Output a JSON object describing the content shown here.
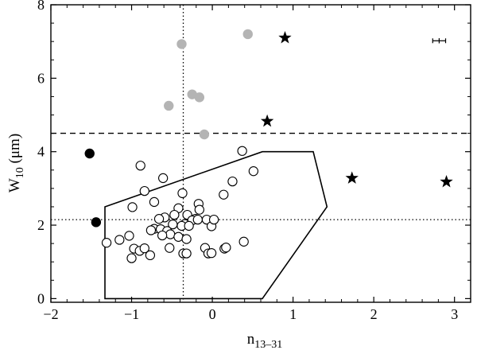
{
  "chart_data": {
    "type": "scatter",
    "xlabel": "n",
    "xlabel_sub": "13–31",
    "ylabel": "W",
    "ylabel_sub": "10",
    "ylabel_unit": " (μm)",
    "xlim": [
      -2,
      3.2
    ],
    "ylim": [
      -0.1,
      8
    ],
    "xticks": [
      -2,
      -1,
      0,
      1,
      2,
      3
    ],
    "xtick_labels": [
      "−2",
      "−1",
      "0",
      "1",
      "2",
      "3"
    ],
    "yticks": [
      0,
      2,
      4,
      6,
      8
    ],
    "ytick_labels": [
      "0",
      "2",
      "4",
      "6",
      "8"
    ],
    "reference_lines": {
      "dashed_horizontal_y": 4.5,
      "dotted_horizontal_y": 2.15,
      "dotted_vertical_x": -0.36
    },
    "region_polygon": [
      [
        -1.33,
        2.5
      ],
      [
        0.62,
        4.0
      ],
      [
        1.25,
        4.0
      ],
      [
        1.42,
        2.5
      ],
      [
        0.62,
        0
      ],
      [
        -1.33,
        0
      ]
    ],
    "error_bar": {
      "x": 2.81,
      "y": 7.02,
      "xerr": 0.08,
      "yerr": 0.07
    },
    "series": [
      {
        "marker": "open-circle",
        "x": [
          -0.89,
          -0.84,
          -0.61,
          -0.37,
          -0.17,
          -0.16,
          -0.07,
          0.14,
          0.25,
          0.37,
          0.51,
          -0.99,
          -0.72,
          -0.42,
          -0.31,
          -0.21,
          -0.47,
          -0.59,
          -0.66,
          -0.25,
          -0.34,
          -0.49,
          -0.38,
          -0.29,
          -0.18,
          -0.01,
          0.02,
          -0.72,
          -0.64,
          -0.56,
          -0.52,
          -0.62,
          -0.42,
          -0.32,
          -0.09,
          0.15,
          -1.31,
          -1.15,
          -1.03,
          -0.97,
          -0.9,
          -0.84,
          -0.77,
          -1.0,
          -0.76,
          -0.53,
          -0.36,
          -0.32,
          -0.05,
          -0.01,
          0.17,
          0.39
        ],
        "y": [
          3.62,
          2.93,
          3.28,
          2.87,
          2.58,
          2.42,
          2.15,
          2.83,
          3.19,
          4.02,
          3.47,
          2.49,
          2.63,
          2.46,
          2.28,
          2.17,
          2.28,
          2.21,
          2.17,
          2.13,
          2.03,
          2.02,
          1.98,
          1.98,
          2.15,
          1.97,
          2.15,
          1.9,
          1.89,
          1.84,
          1.75,
          1.72,
          1.68,
          1.62,
          1.38,
          1.36,
          1.52,
          1.6,
          1.71,
          1.36,
          1.3,
          1.37,
          1.18,
          1.1,
          1.86,
          1.38,
          1.23,
          1.23,
          1.23,
          1.24,
          1.39,
          1.55
        ]
      },
      {
        "marker": "filled-circle",
        "color": "#000000",
        "x": [
          -1.52,
          -1.44
        ],
        "y": [
          3.95,
          2.08
        ]
      },
      {
        "marker": "gray-circle",
        "color": "#b4b4b4",
        "x": [
          -0.38,
          0.44,
          -0.54,
          -0.25,
          -0.16,
          -0.1
        ],
        "y": [
          6.93,
          7.2,
          5.25,
          5.56,
          5.48,
          4.47
        ]
      },
      {
        "marker": "star",
        "color": "#000000",
        "x": [
          0.9,
          0.68,
          1.73,
          2.9
        ],
        "y": [
          7.1,
          4.83,
          3.28,
          3.18
        ]
      }
    ]
  }
}
